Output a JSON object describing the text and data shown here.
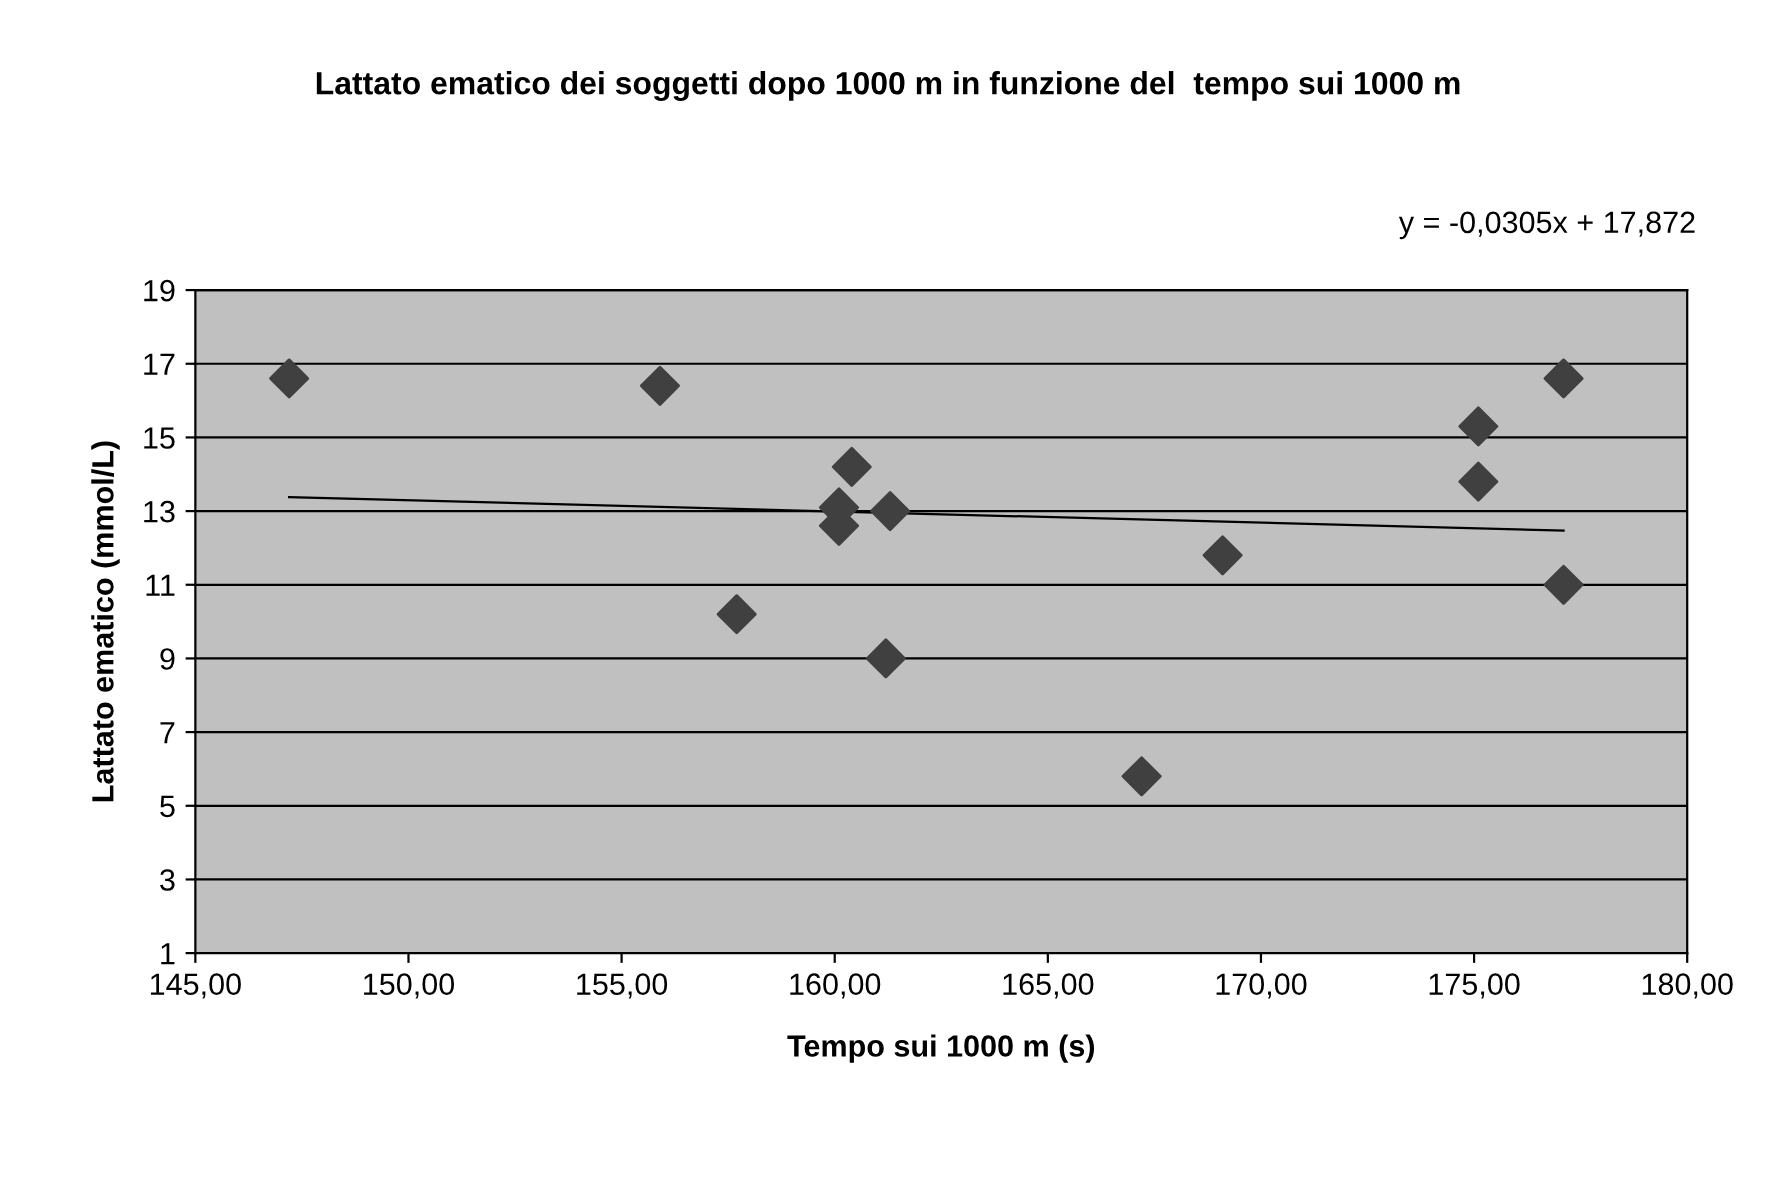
{
  "chart_data": {
    "type": "scatter",
    "title": "Lattato ematico dei soggetti dopo 1000 m in funzione del  tempo sui 1000 m",
    "xlabel": "Tempo sui 1000 m (s)",
    "ylabel": "Lattato ematico (mmol/L)",
    "annotations": [
      "y = -0,0305x + 17,872"
    ],
    "series": [
      {
        "color": "#404040",
        "marker": "diamond",
        "x": [
          147.2,
          155.9,
          157.7,
          160.1,
          160.1,
          160.4,
          161.3,
          161.2,
          167.2,
          169.1,
          175.1,
          175.1,
          177.1,
          177.1
        ],
        "values": [
          16.6,
          16.4,
          10.2,
          13.1,
          12.6,
          14.2,
          13.0,
          9.0,
          5.8,
          11.8,
          13.8,
          15.3,
          16.6,
          11.0
        ]
      },
      {
        "type": "line",
        "color": "#000000",
        "marker": "none",
        "line_style": "solid",
        "x": [
          147.2,
          177.1
        ],
        "values": [
          13.38,
          12.47
        ]
      }
    ],
    "xlim": [
      145,
      180
    ],
    "xticks": [
      {
        "value": 145,
        "label": "145,00"
      },
      {
        "value": 150,
        "label": "150,00"
      },
      {
        "value": 155,
        "label": "155,00"
      },
      {
        "value": 160,
        "label": "160,00"
      },
      {
        "value": 165,
        "label": "165,00"
      },
      {
        "value": 170,
        "label": "170,00"
      },
      {
        "value": 175,
        "label": "175,00"
      },
      {
        "value": 180,
        "label": "180,00"
      }
    ],
    "ylim": [
      1,
      19
    ],
    "yticks": [
      1,
      3,
      5,
      7,
      9,
      11,
      13,
      15,
      17,
      19
    ],
    "grid": "y",
    "legend": false
  }
}
